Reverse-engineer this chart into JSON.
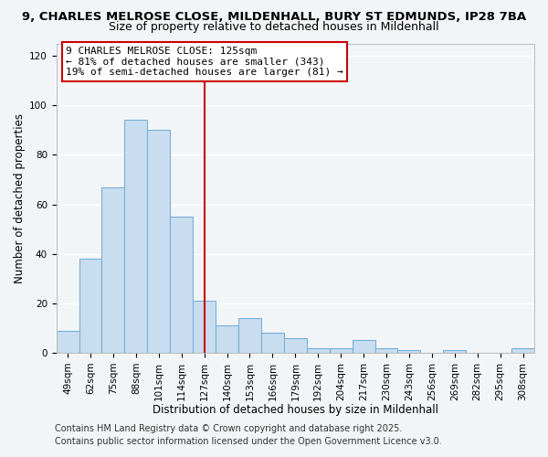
{
  "title_line1": "9, CHARLES MELROSE CLOSE, MILDENHALL, BURY ST EDMUNDS, IP28 7BA",
  "title_line2": "Size of property relative to detached houses in Mildenhall",
  "xlabel": "Distribution of detached houses by size in Mildenhall",
  "ylabel": "Number of detached properties",
  "categories": [
    "49sqm",
    "62sqm",
    "75sqm",
    "88sqm",
    "101sqm",
    "114sqm",
    "127sqm",
    "140sqm",
    "153sqm",
    "166sqm",
    "179sqm",
    "192sqm",
    "204sqm",
    "217sqm",
    "230sqm",
    "243sqm",
    "256sqm",
    "269sqm",
    "282sqm",
    "295sqm",
    "308sqm"
  ],
  "values": [
    9,
    38,
    67,
    94,
    90,
    55,
    21,
    11,
    14,
    8,
    6,
    2,
    2,
    5,
    2,
    1,
    0,
    1,
    0,
    0,
    2
  ],
  "bar_color": "#c8ddef",
  "bar_edge_color": "#7aafd4",
  "vline_x_index": 6,
  "vline_color": "#cc0000",
  "annotation_title": "9 CHARLES MELROSE CLOSE: 125sqm",
  "annotation_line2": "← 81% of detached houses are smaller (343)",
  "annotation_line3": "19% of semi-detached houses are larger (81) →",
  "annotation_box_edge_color": "#cc0000",
  "annotation_box_face_color": "#ffffff",
  "ylim": [
    0,
    125
  ],
  "yticks": [
    0,
    20,
    40,
    60,
    80,
    100,
    120
  ],
  "footer_line1": "Contains HM Land Registry data © Crown copyright and database right 2025.",
  "footer_line2": "Contains public sector information licensed under the Open Government Licence v3.0.",
  "background_color": "#f2f5f8",
  "grid_color": "#ffffff",
  "title_fontsize": 9.5,
  "subtitle_fontsize": 9,
  "axis_label_fontsize": 8.5,
  "tick_fontsize": 7.5,
  "annotation_fontsize": 8,
  "footer_fontsize": 7
}
